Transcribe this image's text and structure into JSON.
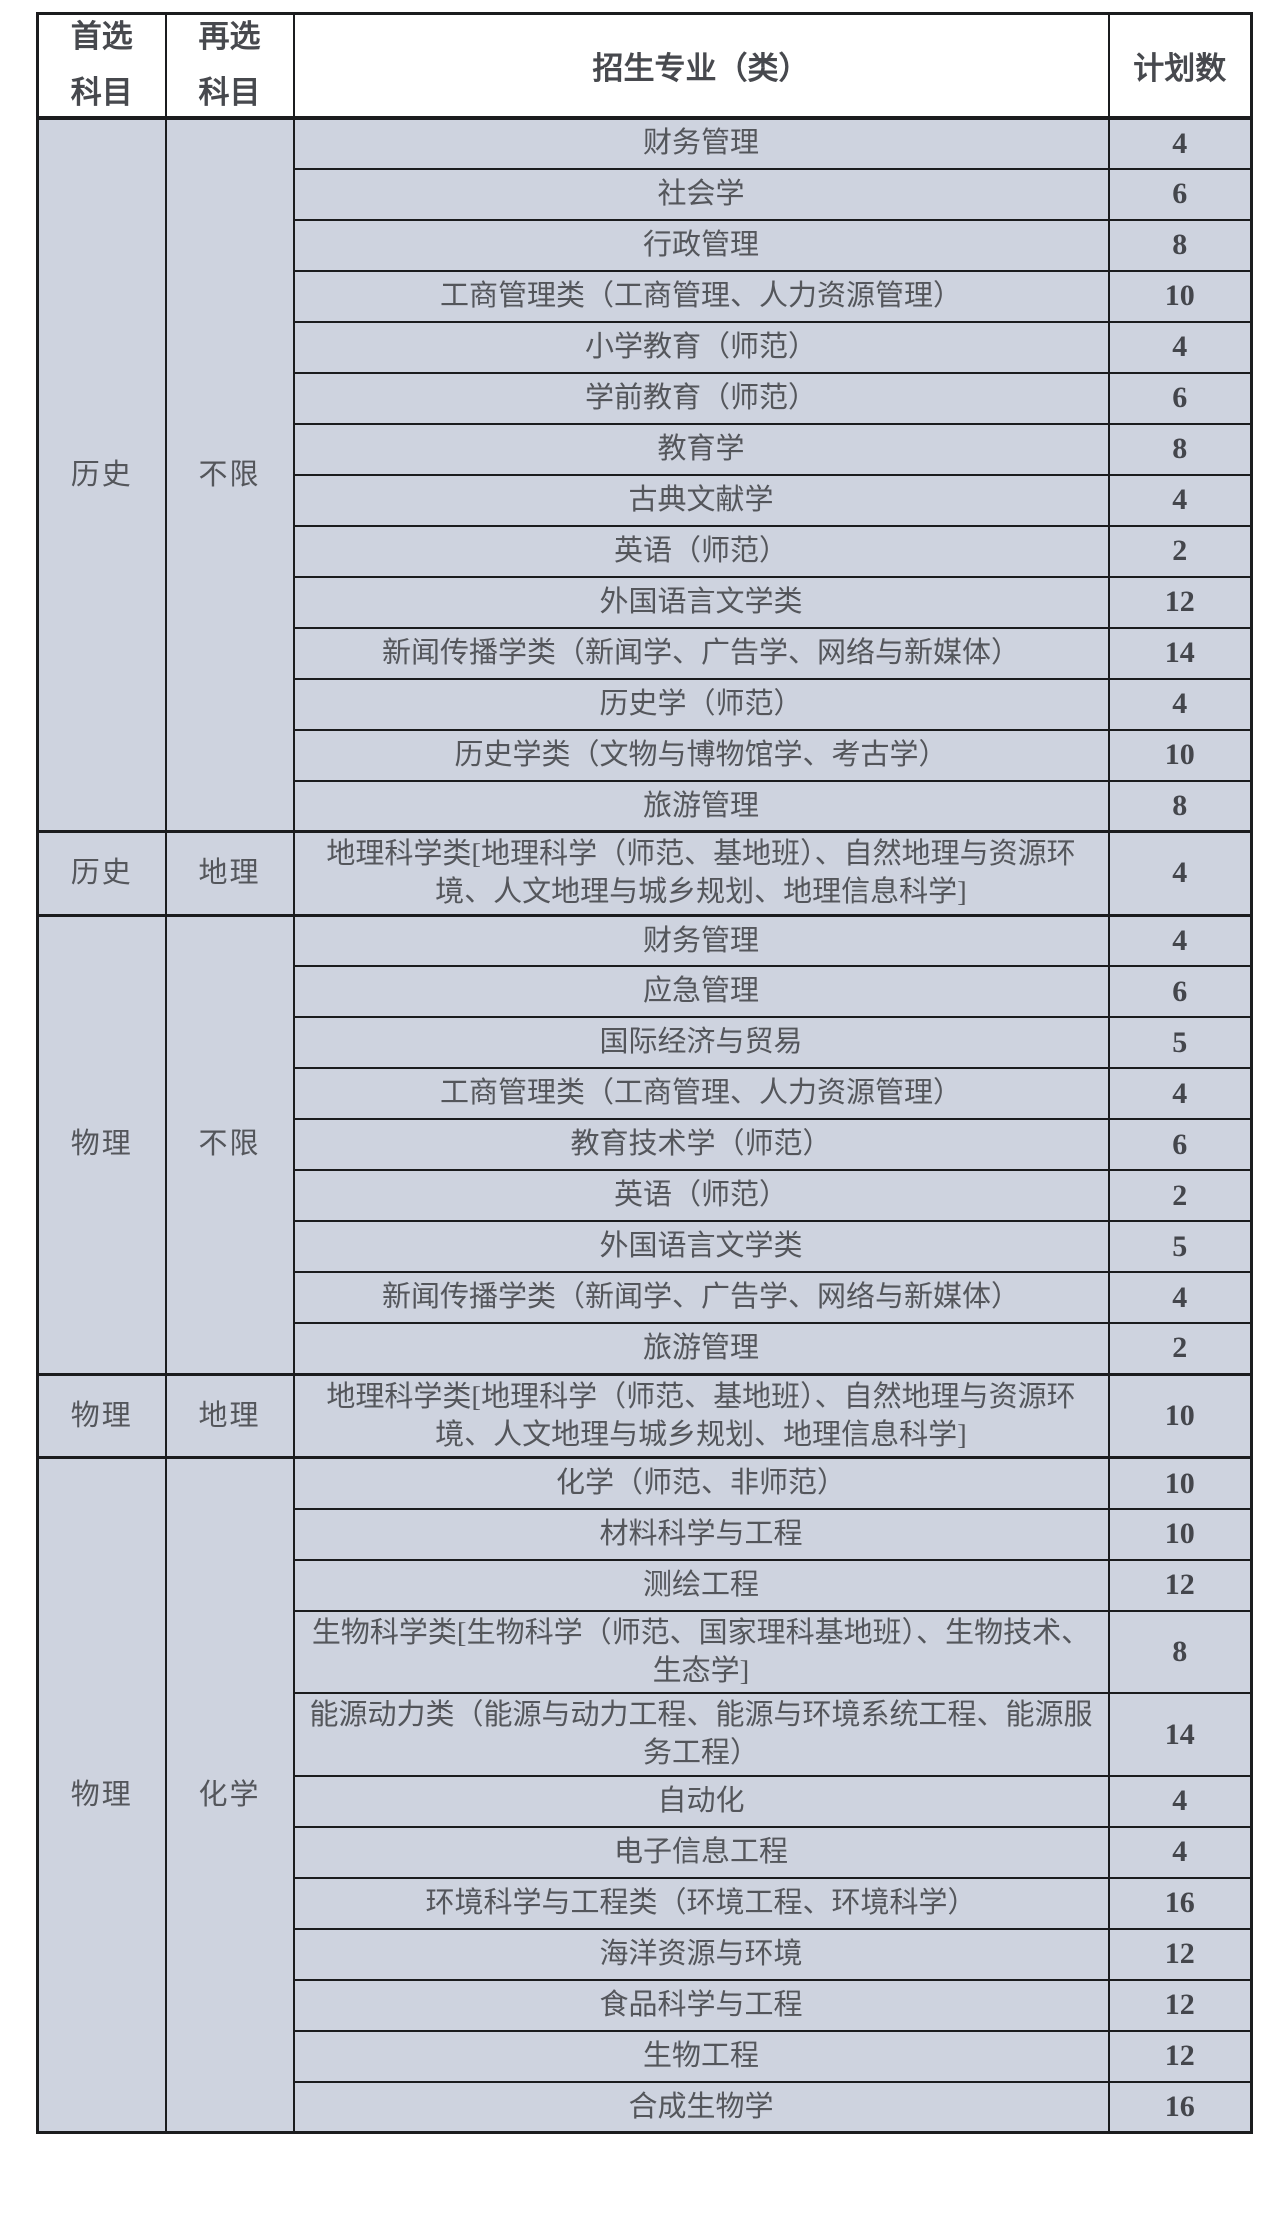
{
  "header": {
    "first_line1": "首选",
    "first_line2": "科目",
    "second_line1": "再选",
    "second_line2": "科目",
    "major": "招生专业（类）",
    "plan_count": "计划数"
  },
  "colors": {
    "row_background": "#ced3df",
    "border": "#1b1c1e",
    "text": "#54565b"
  },
  "sections": [
    {
      "first": "历史",
      "second": "不限",
      "rows": [
        {
          "major": "财务管理",
          "count": "4"
        },
        {
          "major": "社会学",
          "count": "6"
        },
        {
          "major": "行政管理",
          "count": "8"
        },
        {
          "major": "工商管理类（工商管理、人力资源管理）",
          "count": "10"
        },
        {
          "major": "小学教育（师范）",
          "count": "4"
        },
        {
          "major": "学前教育（师范）",
          "count": "6"
        },
        {
          "major": "教育学",
          "count": "8"
        },
        {
          "major": "古典文献学",
          "count": "4"
        },
        {
          "major": "英语（师范）",
          "count": "2"
        },
        {
          "major": "外国语言文学类",
          "count": "12"
        },
        {
          "major": "新闻传播学类（新闻学、广告学、网络与新媒体）",
          "count": "14"
        },
        {
          "major": "历史学（师范）",
          "count": "4"
        },
        {
          "major": "历史学类（文物与博物馆学、考古学）",
          "count": "10"
        },
        {
          "major": "旅游管理",
          "count": "8"
        }
      ]
    },
    {
      "first": "历史",
      "second": "地理",
      "rows": [
        {
          "major": "地理科学类[地理科学（师范、基地班）、自然地理与资源环境、人文地理与城乡规划、地理信息科学]",
          "count": "4"
        }
      ]
    },
    {
      "first": "物理",
      "second": "不限",
      "rows": [
        {
          "major": "财务管理",
          "count": "4"
        },
        {
          "major": "应急管理",
          "count": "6"
        },
        {
          "major": "国际经济与贸易",
          "count": "5"
        },
        {
          "major": "工商管理类（工商管理、人力资源管理）",
          "count": "4"
        },
        {
          "major": "教育技术学（师范）",
          "count": "6"
        },
        {
          "major": "英语（师范）",
          "count": "2"
        },
        {
          "major": "外国语言文学类",
          "count": "5"
        },
        {
          "major": "新闻传播学类（新闻学、广告学、网络与新媒体）",
          "count": "4"
        },
        {
          "major": "旅游管理",
          "count": "2"
        }
      ]
    },
    {
      "first": "物理",
      "second": "地理",
      "rows": [
        {
          "major": "地理科学类[地理科学（师范、基地班）、自然地理与资源环境、人文地理与城乡规划、地理信息科学]",
          "count": "10"
        }
      ]
    },
    {
      "first": "物理",
      "second": "化学",
      "rows": [
        {
          "major": "化学（师范、非师范）",
          "count": "10"
        },
        {
          "major": "材料科学与工程",
          "count": "10"
        },
        {
          "major": "测绘工程",
          "count": "12"
        },
        {
          "major": "生物科学类[生物科学（师范、国家理科基地班）、生物技术、生态学]",
          "count": "8"
        },
        {
          "major": "能源动力类（能源与动力工程、能源与环境系统工程、能源服务工程）",
          "count": "14"
        },
        {
          "major": "自动化",
          "count": "4"
        },
        {
          "major": "电子信息工程",
          "count": "4"
        },
        {
          "major": "环境科学与工程类（环境工程、环境科学）",
          "count": "16"
        },
        {
          "major": "海洋资源与环境",
          "count": "12"
        },
        {
          "major": "食品科学与工程",
          "count": "12"
        },
        {
          "major": "生物工程",
          "count": "12"
        },
        {
          "major": "合成生物学",
          "count": "16"
        }
      ]
    }
  ]
}
